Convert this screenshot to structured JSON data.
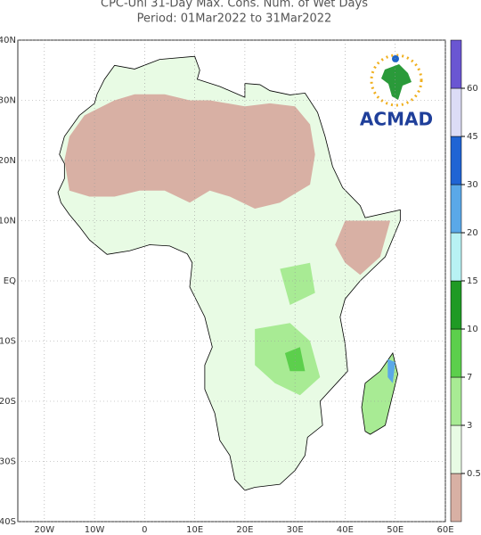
{
  "header": {
    "title": "CPC-Uni 31-Day Max. Cons. Num. of Wet Days",
    "subtitle": "Period: 01Mar2022 to 31Mar2022"
  },
  "map": {
    "lonlim": [
      -25.3,
      60
    ],
    "latlim": [
      -40,
      40
    ],
    "lon_ticks": [
      {
        "value": -20,
        "label": "20W"
      },
      {
        "value": -10,
        "label": "10W"
      },
      0,
      {
        "value": 10,
        "label": "10E"
      },
      {
        "value": 20,
        "label": "20E"
      },
      {
        "value": 30,
        "label": "30E"
      },
      {
        "value": 40,
        "label": "40E"
      },
      {
        "value": 50,
        "label": "50E"
      },
      {
        "value": 60,
        "label": "60E"
      }
    ],
    "lat_ticks": [
      {
        "value": 40,
        "label": "40N"
      },
      {
        "value": 30,
        "label": "30N"
      },
      {
        "value": 20,
        "label": "20N"
      },
      {
        "value": 10,
        "label": "10N"
      },
      {
        "value": 0,
        "label": "EQ"
      },
      {
        "value": -10,
        "label": "10S"
      },
      {
        "value": -20,
        "label": "20S"
      },
      {
        "value": -30,
        "label": "30S"
      },
      {
        "value": -40,
        "label": "40S"
      }
    ]
  },
  "colorbar": {
    "levels": [
      0.5,
      3,
      7,
      10,
      15,
      20,
      30,
      45,
      60
    ],
    "colors": [
      "#d8b0a4",
      "#e8fbe4",
      "#a8eb94",
      "#5ccf4c",
      "#1f9a24",
      "#b8f2f4",
      "#5aa8e8",
      "#2064d4",
      "#dcdcf6",
      "#6a56d2"
    ]
  },
  "logo": {
    "text": "ACMAD"
  }
}
